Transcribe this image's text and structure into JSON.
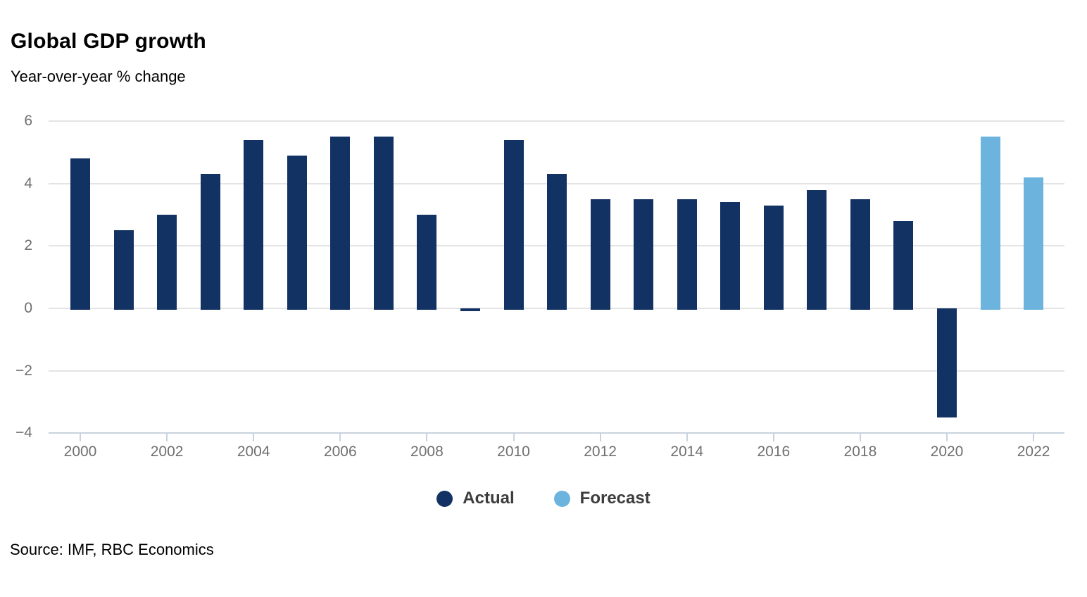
{
  "header": {
    "title": "Global GDP growth",
    "subtitle": "Year-over-year % change"
  },
  "source": {
    "text": "Source: IMF, RBC Economics"
  },
  "legend": {
    "items": [
      {
        "label": "Actual",
        "color": "#123263"
      },
      {
        "label": "Forecast",
        "color": "#6cb4dd"
      }
    ]
  },
  "chart_data": {
    "type": "bar",
    "title": "Global GDP growth",
    "subtitle": "Year-over-year % change",
    "xlabel": "",
    "ylabel": "Year-over-year % change",
    "ylim": [
      -4,
      6
    ],
    "grid": true,
    "legend_position": "bottom-center",
    "categories": [
      2000,
      2001,
      2002,
      2003,
      2004,
      2005,
      2006,
      2007,
      2008,
      2009,
      2010,
      2011,
      2012,
      2013,
      2014,
      2015,
      2016,
      2017,
      2018,
      2019,
      2020,
      2021,
      2022
    ],
    "series": [
      {
        "name": "Actual",
        "color": "#123263",
        "values": [
          4.8,
          2.5,
          3.0,
          4.3,
          5.4,
          4.9,
          5.5,
          5.5,
          3.0,
          -0.1,
          5.4,
          4.3,
          3.5,
          3.5,
          3.5,
          3.4,
          3.3,
          3.8,
          3.5,
          2.8,
          -3.5,
          null,
          null
        ]
      },
      {
        "name": "Forecast",
        "color": "#6cb4dd",
        "values": [
          null,
          null,
          null,
          null,
          null,
          null,
          null,
          null,
          null,
          null,
          null,
          null,
          null,
          null,
          null,
          null,
          null,
          null,
          null,
          null,
          null,
          5.5,
          4.2
        ]
      }
    ],
    "yticks": [
      {
        "value": 6,
        "label": "6"
      },
      {
        "value": 4,
        "label": "4"
      },
      {
        "value": 2,
        "label": "2"
      },
      {
        "value": 0,
        "label": "0"
      },
      {
        "value": -2,
        "label": "−2"
      },
      {
        "value": -4,
        "label": "−4"
      }
    ],
    "gridline_values": [
      6,
      4,
      2,
      0,
      -2
    ],
    "xticks": [
      "2000",
      "2002",
      "2004",
      "2006",
      "2008",
      "2010",
      "2012",
      "2014",
      "2016",
      "2018",
      "2020",
      "2022"
    ],
    "colors": {
      "gridline": "#e4e4e4",
      "axis_line": "#c9d3e0",
      "axis_text": "#6f6f6f"
    }
  }
}
